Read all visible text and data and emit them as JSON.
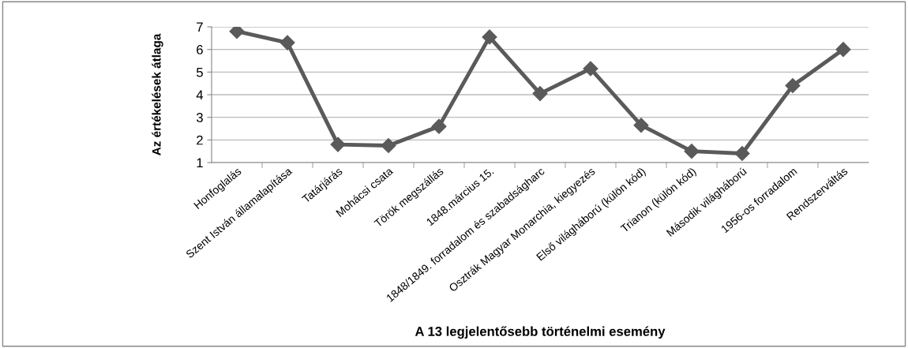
{
  "chart_data": {
    "type": "line",
    "xlabel": "A 13 legjelentősebb történelmi esemény",
    "ylabel": "Az értékelések átlaga",
    "categories": [
      "Honfoglalás",
      "Szent István államalapítása",
      "Tatárjárás",
      "Mohácsi csata",
      "Török megszállás",
      "1848.március 15.",
      "1848/1849. forradalom és szabadságharc",
      "Osztrák Magyar Monarchia, kiegyezés",
      "Első világháború (külön kód)",
      "Trianon (külön kód)",
      "Második világháború",
      "1956-os forradalom",
      "Rendszerváltás"
    ],
    "series": [
      {
        "color": "#5a5a5a",
        "values": [
          6.8,
          6.3,
          1.8,
          1.75,
          2.6,
          6.55,
          4.05,
          5.15,
          2.65,
          1.5,
          1.4,
          4.4,
          6.0
        ]
      }
    ],
    "ylim": [
      1,
      7
    ],
    "yticks": [
      1,
      2,
      3,
      4,
      5,
      6,
      7
    ],
    "grid": "y",
    "marker": "diamond",
    "line_style": "solid",
    "legend": false
  }
}
